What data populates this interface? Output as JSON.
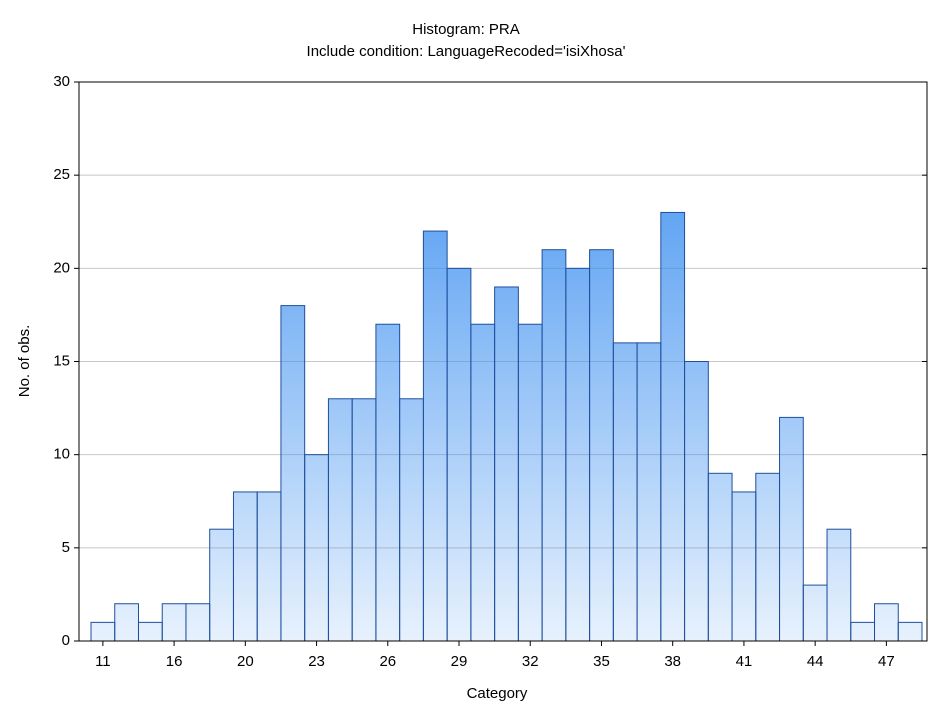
{
  "chart_data": {
    "type": "bar",
    "title": "Histogram: PRA",
    "subtitle": "Include condition: LanguageRecoded='isiXhosa'",
    "x_label": "Category",
    "y_label": "No. of obs.",
    "categories": [
      "11",
      null,
      null,
      "16",
      null,
      null,
      "20",
      null,
      null,
      "23",
      null,
      null,
      "26",
      null,
      null,
      "29",
      null,
      null,
      "32",
      null,
      null,
      "35",
      null,
      null,
      "38",
      null,
      null,
      "41",
      null,
      null,
      "44",
      null,
      null,
      "47",
      null
    ],
    "values": [
      1,
      2,
      1,
      2,
      2,
      6,
      8,
      8,
      18,
      10,
      13,
      13,
      17,
      13,
      22,
      20,
      17,
      19,
      17,
      21,
      20,
      21,
      16,
      16,
      23,
      15,
      9,
      8,
      9,
      12,
      3,
      6,
      1,
      2,
      1
    ],
    "color": "#3a8ef0",
    "edge_color": "#1f4f9c",
    "ylim": [
      0,
      30
    ],
    "yticks": [
      0,
      5,
      10,
      15,
      20,
      25,
      30
    ],
    "grid": true
  }
}
